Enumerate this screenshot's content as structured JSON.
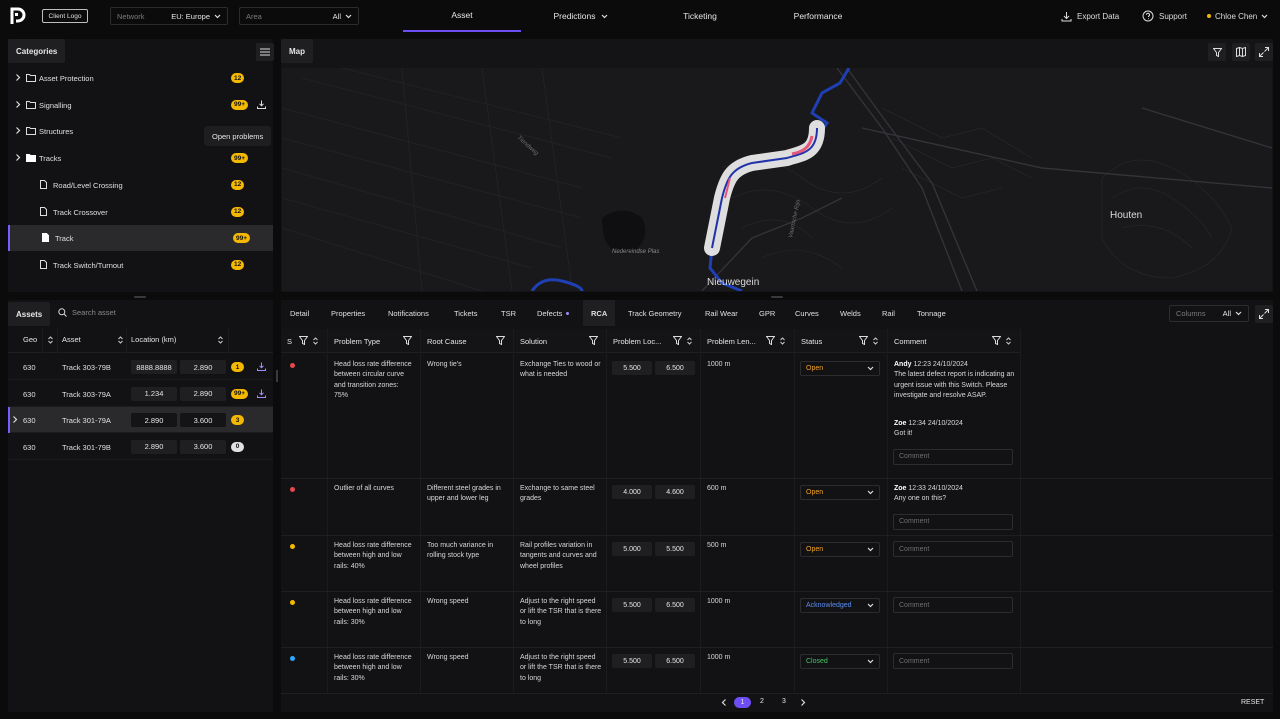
{
  "header": {
    "client_logo": "Client Logo",
    "network": {
      "label": "Network",
      "value": "EU: Europe"
    },
    "area": {
      "placeholder": "Area",
      "value": "All"
    },
    "tabs": [
      {
        "label": "Asset",
        "active": true
      },
      {
        "label": "Predictions",
        "has_dropdown": true
      },
      {
        "label": "Ticketing"
      },
      {
        "label": "Performance"
      }
    ],
    "export_label": "Export Data",
    "support_label": "Support",
    "user_name": "Chloe Chen"
  },
  "categories": {
    "title": "Categories",
    "items": [
      {
        "label": "Asset Protection",
        "badge": "12",
        "type": "folder"
      },
      {
        "label": "Signalling",
        "badge": "99+",
        "type": "folder",
        "download": true
      },
      {
        "label": "Structures",
        "badge": "",
        "type": "folder"
      },
      {
        "label": "Tracks",
        "badge": "99+",
        "type": "folder-filled"
      },
      {
        "label": "Road/Level Crossing",
        "badge": "12",
        "type": "doc"
      },
      {
        "label": "Track Crossover",
        "badge": "12",
        "type": "doc"
      },
      {
        "label": "Track",
        "badge": "99+",
        "type": "doc-filled",
        "selected": true
      },
      {
        "label": "Track Switch/Turnout",
        "badge": "12",
        "type": "doc"
      }
    ],
    "tooltip": "Open problems"
  },
  "map": {
    "title": "Map",
    "labels": {
      "houten": "Houten",
      "nieuwegein": "Nieuwegein",
      "nedereindse_plas": "Nedereindse Plas",
      "canal": "Lekkanaal",
      "vaartsche": "Vaartsche Rijn",
      "road": "Tiendweg"
    }
  },
  "assets": {
    "tab": "Assets",
    "search_placeholder": "Search asset",
    "columns": [
      "Geo",
      "Asset",
      "Location (km)"
    ],
    "rows": [
      {
        "geo": "630",
        "asset": "Track 303-79B",
        "from": "8888.8888",
        "to": "2.890",
        "badge": "1",
        "download": true
      },
      {
        "geo": "630",
        "asset": "Track 303-79A",
        "from": "1.234",
        "to": "2.890",
        "badge": "99+",
        "download": true
      },
      {
        "geo": "630",
        "asset": "Track 301-79A",
        "from": "2.890",
        "to": "3.600",
        "badge": "3",
        "selected": true
      },
      {
        "geo": "630",
        "asset": "Track 301-79B",
        "from": "2.890",
        "to": "3.600",
        "badge": "0",
        "badge_grey": true
      }
    ]
  },
  "detail_tabs": [
    "Detail",
    "Properties",
    "Notifications",
    "Tickets",
    "TSR",
    "Defects",
    "RCA",
    "Track Geometry",
    "Rail Wear",
    "GPR",
    "Curves",
    "Welds",
    "Rail",
    "Tonnage"
  ],
  "active_detail_tab": "RCA",
  "columns_selector": {
    "label": "Columns",
    "value": "All"
  },
  "rca": {
    "headers": {
      "s": "S",
      "problem_type": "Problem Type",
      "root_cause": "Root Cause",
      "solution": "Solution",
      "problem_location": "Problem Loc...",
      "problem_length": "Problem Len...",
      "status": "Status",
      "comment": "Comment"
    },
    "comment_placeholder": "Comment",
    "rows": [
      {
        "dot_color": "#e5484d",
        "problem_type": "Head loss rate difference between circular curve and transition zones: 75%",
        "root_cause": "Wrong tie's",
        "solution": "Exchange Ties to wood or what is needed",
        "loc_from": "5.500",
        "loc_to": "6.500",
        "length": "1000 m",
        "status": "Open",
        "status_color": "#f5a524",
        "comments": [
          {
            "author": "Andy",
            "time": "12:23 24/10/2024",
            "text": "The latest defect report is indicating an urgent issue with this Switch. Please investigate and resolve ASAP."
          },
          {
            "author": "Zoe",
            "time": "12:34 24/10/2024",
            "text": "Got it!"
          }
        ]
      },
      {
        "dot_color": "#e5484d",
        "problem_type": "Outlier of all curves",
        "root_cause": "Different steel grades in upper and lower leg",
        "solution": "Exchange to same steel grades",
        "loc_from": "4.000",
        "loc_to": "4.600",
        "length": "600 m",
        "status": "Open",
        "status_color": "#f5a524",
        "comments": [
          {
            "author": "Zoe",
            "time": "12:33 24/10/2024",
            "text": "Any one on this?"
          }
        ]
      },
      {
        "dot_color": "#f5b800",
        "problem_type": "Head loss rate difference between high and low rails: 40%",
        "root_cause": "Too much variance in rolling stock type",
        "solution": "Rail profiles variation in tangents and curves and wheel profiles",
        "loc_from": "5.000",
        "loc_to": "5.500",
        "length": "500 m",
        "status": "Open",
        "status_color": "#f5a524",
        "comments": []
      },
      {
        "dot_color": "#f5b800",
        "problem_type": "Head loss rate difference between high and low rails: 30%",
        "root_cause": "Wrong speed",
        "solution": "Adjust to the right speed or lift the TSR that is there to long",
        "loc_from": "5.500",
        "loc_to": "6.500",
        "length": "1000 m",
        "status": "Acknowledged",
        "status_color": "#5b8def",
        "comments": []
      },
      {
        "dot_color": "#2fa8ff",
        "problem_type": "Head loss rate difference between high and low rails: 30%",
        "root_cause": "Wrong speed",
        "solution": "Adjust to the right speed or lift the TSR that is there to long",
        "loc_from": "5.500",
        "loc_to": "6.500",
        "length": "1000 m",
        "status": "Closed",
        "status_color": "#46c46a",
        "comments": []
      }
    ]
  },
  "pagination": {
    "pages": [
      "1",
      "2",
      "3"
    ],
    "current": "1",
    "reset_label": "RESET"
  },
  "colors": {
    "accent": "#6c4ef2",
    "badge": "#f5b800",
    "panel": "#121214",
    "background": "#0b0b0c"
  }
}
